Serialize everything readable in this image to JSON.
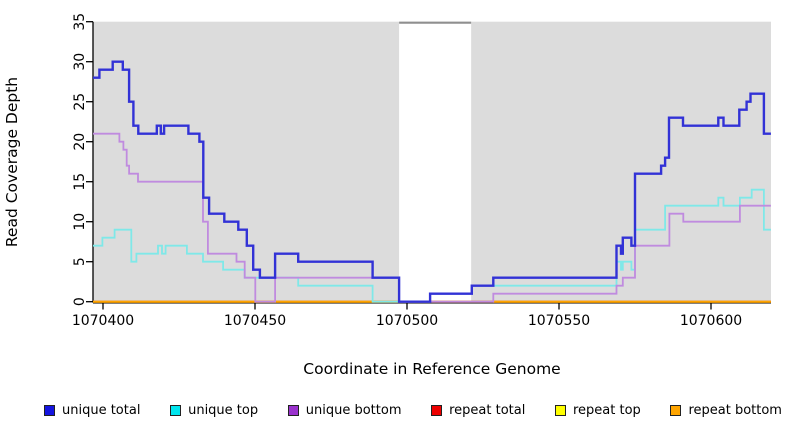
{
  "figure": {
    "background": "#ffffff",
    "panel_background": "#dcdcdc",
    "masked_band_border": "#8f8f8f"
  },
  "x_axis": {
    "label": "Coordinate in Reference Genome",
    "ticks": [
      1070400,
      1070450,
      1070500,
      1070550,
      1070600
    ],
    "range": [
      1070396.7,
      1070619.7
    ]
  },
  "y_axis": {
    "label": "Read Coverage Depth",
    "ticks": [
      0,
      5,
      10,
      15,
      20,
      25,
      30,
      35
    ],
    "range": [
      0,
      35
    ]
  },
  "legend": {
    "items": [
      {
        "label": "unique total",
        "color": "#1515e0"
      },
      {
        "label": "unique top",
        "color": "#00e5ee"
      },
      {
        "label": "unique bottom",
        "color": "#9a32cd"
      },
      {
        "label": "repeat total",
        "color": "#ee0000"
      },
      {
        "label": "repeat top",
        "color": "#ffff00"
      },
      {
        "label": "repeat bottom",
        "color": "#ffa500"
      }
    ]
  },
  "chart_data": {
    "type": "line",
    "step": true,
    "title": "",
    "xlabel": "Coordinate in Reference Genome",
    "ylabel": "Read Coverage Depth",
    "xlim": [
      1070396.7,
      1070619.7
    ],
    "ylim": [
      0,
      35
    ],
    "grid": false,
    "masked_region": {
      "x0": 1070497.4,
      "x1": 1070521.1
    },
    "draw_order": [
      "repeat top",
      "repeat total",
      "repeat bottom",
      "unique top",
      "unique bottom",
      "unique total"
    ],
    "series": [
      {
        "name": "unique total",
        "color": "#3232d6",
        "width": 2.4,
        "segments": [
          {
            "xend": 1070619.7,
            "pts": [
              [
                1070396.7,
                28
              ],
              [
                1070398.8,
                29
              ],
              [
                1070403.2,
                30
              ],
              [
                1070406.5,
                29
              ],
              [
                1070408.6,
                25
              ],
              [
                1070410.0,
                22
              ],
              [
                1070411.6,
                21
              ],
              [
                1070417.7,
                22
              ],
              [
                1070419.0,
                21
              ],
              [
                1070420.1,
                22
              ],
              [
                1070428.1,
                21
              ],
              [
                1070431.7,
                20
              ],
              [
                1070433.0,
                13
              ],
              [
                1070434.9,
                11
              ],
              [
                1070439.9,
                10
              ],
              [
                1070444.5,
                9
              ],
              [
                1070447.3,
                7
              ],
              [
                1070449.4,
                4
              ],
              [
                1070451.6,
                3
              ],
              [
                1070456.6,
                6
              ],
              [
                1070464.2,
                5
              ],
              [
                1070488.7,
                3
              ],
              [
                1070497.4,
                0
              ],
              [
                1070507.6,
                1
              ],
              [
                1070521.3,
                2
              ],
              [
                1070528.4,
                3
              ],
              [
                1070568.9,
                7
              ],
              [
                1070570.4,
                6
              ],
              [
                1070571.0,
                8
              ],
              [
                1070573.8,
                7
              ],
              [
                1070575.0,
                16
              ],
              [
                1070583.6,
                17
              ],
              [
                1070584.9,
                18
              ],
              [
                1070586.2,
                23
              ],
              [
                1070590.8,
                22
              ],
              [
                1070602.4,
                23
              ],
              [
                1070604.1,
                22
              ],
              [
                1070609.3,
                24
              ],
              [
                1070611.7,
                25
              ],
              [
                1070613.0,
                26
              ],
              [
                1070617.4,
                21
              ]
            ]
          }
        ]
      },
      {
        "name": "unique top",
        "color": "#7fe8e8",
        "width": 1.8,
        "segments": [
          {
            "xend": 1070619.7,
            "pts": [
              [
                1070396.7,
                7
              ],
              [
                1070399.8,
                8
              ],
              [
                1070403.8,
                9
              ],
              [
                1070409.3,
                5
              ],
              [
                1070411.0,
                6
              ],
              [
                1070418.1,
                7
              ],
              [
                1070419.4,
                6
              ],
              [
                1070420.6,
                7
              ],
              [
                1070427.6,
                6
              ],
              [
                1070432.9,
                5
              ],
              [
                1070439.5,
                4
              ],
              [
                1070446.6,
                3
              ],
              [
                1070464.2,
                2
              ],
              [
                1070488.7,
                0
              ],
              [
                1070507.6,
                1
              ],
              [
                1070521.3,
                2
              ],
              [
                1070568.9,
                5
              ],
              [
                1070570.4,
                4
              ],
              [
                1070571.0,
                5
              ],
              [
                1070573.8,
                4
              ],
              [
                1070575.0,
                9
              ],
              [
                1070584.9,
                12
              ],
              [
                1070602.4,
                13
              ],
              [
                1070604.1,
                12
              ],
              [
                1070609.5,
                13
              ],
              [
                1070613.4,
                14
              ],
              [
                1070617.4,
                9
              ]
            ]
          }
        ]
      },
      {
        "name": "unique bottom",
        "color": "#c08bdf",
        "width": 1.8,
        "segments": [
          {
            "xend": 1070619.7,
            "pts": [
              [
                1070396.7,
                21
              ],
              [
                1070405.4,
                20
              ],
              [
                1070406.7,
                19
              ],
              [
                1070407.8,
                17
              ],
              [
                1070408.6,
                16
              ],
              [
                1070411.5,
                15
              ],
              [
                1070432.9,
                10
              ],
              [
                1070434.5,
                6
              ],
              [
                1070443.9,
                5
              ],
              [
                1070446.6,
                3
              ],
              [
                1070450.1,
                0
              ],
              [
                1070456.6,
                3
              ],
              [
                1070497.4,
                0
              ],
              [
                1070528.4,
                1
              ],
              [
                1070568.9,
                2
              ],
              [
                1070571.0,
                3
              ],
              [
                1070575.0,
                7
              ],
              [
                1070586.3,
                11
              ],
              [
                1070590.9,
                10
              ],
              [
                1070609.5,
                12
              ]
            ]
          }
        ]
      },
      {
        "name": "repeat total",
        "color": "#d42a2a",
        "width": 1.8,
        "segments": [
          {
            "xend": 1070619.7,
            "pts": [
              [
                1070396.7,
                0
              ]
            ]
          }
        ]
      },
      {
        "name": "repeat top",
        "color": "#ffff00",
        "width": 1.8,
        "segments": [
          {
            "xend": 1070619.7,
            "pts": [
              [
                1070396.7,
                0
              ]
            ]
          }
        ]
      },
      {
        "name": "repeat bottom",
        "color": "#ffa500",
        "width": 2.0,
        "segments": [
          {
            "xend": 1070507.6,
            "pts": [
              [
                1070396.7,
                0
              ]
            ]
          },
          {
            "xend": 1070619.7,
            "pts": [
              [
                1070528.4,
                0
              ]
            ]
          }
        ]
      }
    ]
  }
}
